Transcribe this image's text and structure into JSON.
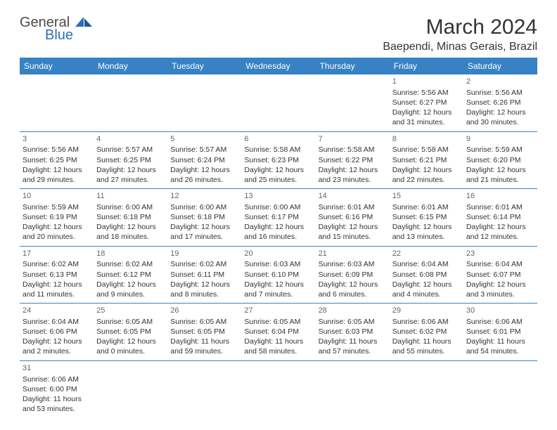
{
  "logo": {
    "text1": "General",
    "text2": "Blue",
    "shape_color": "#2a6fb5"
  },
  "title": "March 2024",
  "location": "Baependi, Minas Gerais, Brazil",
  "header_bg": "#3682c4",
  "header_text_color": "#ffffff",
  "border_color": "#3682c4",
  "day_headers": [
    "Sunday",
    "Monday",
    "Tuesday",
    "Wednesday",
    "Thursday",
    "Friday",
    "Saturday"
  ],
  "weeks": [
    [
      null,
      null,
      null,
      null,
      null,
      {
        "n": "1",
        "sr": "Sunrise: 5:56 AM",
        "ss": "Sunset: 6:27 PM",
        "d1": "Daylight: 12 hours",
        "d2": "and 31 minutes."
      },
      {
        "n": "2",
        "sr": "Sunrise: 5:56 AM",
        "ss": "Sunset: 6:26 PM",
        "d1": "Daylight: 12 hours",
        "d2": "and 30 minutes."
      }
    ],
    [
      {
        "n": "3",
        "sr": "Sunrise: 5:56 AM",
        "ss": "Sunset: 6:25 PM",
        "d1": "Daylight: 12 hours",
        "d2": "and 29 minutes."
      },
      {
        "n": "4",
        "sr": "Sunrise: 5:57 AM",
        "ss": "Sunset: 6:25 PM",
        "d1": "Daylight: 12 hours",
        "d2": "and 27 minutes."
      },
      {
        "n": "5",
        "sr": "Sunrise: 5:57 AM",
        "ss": "Sunset: 6:24 PM",
        "d1": "Daylight: 12 hours",
        "d2": "and 26 minutes."
      },
      {
        "n": "6",
        "sr": "Sunrise: 5:58 AM",
        "ss": "Sunset: 6:23 PM",
        "d1": "Daylight: 12 hours",
        "d2": "and 25 minutes."
      },
      {
        "n": "7",
        "sr": "Sunrise: 5:58 AM",
        "ss": "Sunset: 6:22 PM",
        "d1": "Daylight: 12 hours",
        "d2": "and 23 minutes."
      },
      {
        "n": "8",
        "sr": "Sunrise: 5:58 AM",
        "ss": "Sunset: 6:21 PM",
        "d1": "Daylight: 12 hours",
        "d2": "and 22 minutes."
      },
      {
        "n": "9",
        "sr": "Sunrise: 5:59 AM",
        "ss": "Sunset: 6:20 PM",
        "d1": "Daylight: 12 hours",
        "d2": "and 21 minutes."
      }
    ],
    [
      {
        "n": "10",
        "sr": "Sunrise: 5:59 AM",
        "ss": "Sunset: 6:19 PM",
        "d1": "Daylight: 12 hours",
        "d2": "and 20 minutes."
      },
      {
        "n": "11",
        "sr": "Sunrise: 6:00 AM",
        "ss": "Sunset: 6:18 PM",
        "d1": "Daylight: 12 hours",
        "d2": "and 18 minutes."
      },
      {
        "n": "12",
        "sr": "Sunrise: 6:00 AM",
        "ss": "Sunset: 6:18 PM",
        "d1": "Daylight: 12 hours",
        "d2": "and 17 minutes."
      },
      {
        "n": "13",
        "sr": "Sunrise: 6:00 AM",
        "ss": "Sunset: 6:17 PM",
        "d1": "Daylight: 12 hours",
        "d2": "and 16 minutes."
      },
      {
        "n": "14",
        "sr": "Sunrise: 6:01 AM",
        "ss": "Sunset: 6:16 PM",
        "d1": "Daylight: 12 hours",
        "d2": "and 15 minutes."
      },
      {
        "n": "15",
        "sr": "Sunrise: 6:01 AM",
        "ss": "Sunset: 6:15 PM",
        "d1": "Daylight: 12 hours",
        "d2": "and 13 minutes."
      },
      {
        "n": "16",
        "sr": "Sunrise: 6:01 AM",
        "ss": "Sunset: 6:14 PM",
        "d1": "Daylight: 12 hours",
        "d2": "and 12 minutes."
      }
    ],
    [
      {
        "n": "17",
        "sr": "Sunrise: 6:02 AM",
        "ss": "Sunset: 6:13 PM",
        "d1": "Daylight: 12 hours",
        "d2": "and 11 minutes."
      },
      {
        "n": "18",
        "sr": "Sunrise: 6:02 AM",
        "ss": "Sunset: 6:12 PM",
        "d1": "Daylight: 12 hours",
        "d2": "and 9 minutes."
      },
      {
        "n": "19",
        "sr": "Sunrise: 6:02 AM",
        "ss": "Sunset: 6:11 PM",
        "d1": "Daylight: 12 hours",
        "d2": "and 8 minutes."
      },
      {
        "n": "20",
        "sr": "Sunrise: 6:03 AM",
        "ss": "Sunset: 6:10 PM",
        "d1": "Daylight: 12 hours",
        "d2": "and 7 minutes."
      },
      {
        "n": "21",
        "sr": "Sunrise: 6:03 AM",
        "ss": "Sunset: 6:09 PM",
        "d1": "Daylight: 12 hours",
        "d2": "and 6 minutes."
      },
      {
        "n": "22",
        "sr": "Sunrise: 6:04 AM",
        "ss": "Sunset: 6:08 PM",
        "d1": "Daylight: 12 hours",
        "d2": "and 4 minutes."
      },
      {
        "n": "23",
        "sr": "Sunrise: 6:04 AM",
        "ss": "Sunset: 6:07 PM",
        "d1": "Daylight: 12 hours",
        "d2": "and 3 minutes."
      }
    ],
    [
      {
        "n": "24",
        "sr": "Sunrise: 6:04 AM",
        "ss": "Sunset: 6:06 PM",
        "d1": "Daylight: 12 hours",
        "d2": "and 2 minutes."
      },
      {
        "n": "25",
        "sr": "Sunrise: 6:05 AM",
        "ss": "Sunset: 6:05 PM",
        "d1": "Daylight: 12 hours",
        "d2": "and 0 minutes."
      },
      {
        "n": "26",
        "sr": "Sunrise: 6:05 AM",
        "ss": "Sunset: 6:05 PM",
        "d1": "Daylight: 11 hours",
        "d2": "and 59 minutes."
      },
      {
        "n": "27",
        "sr": "Sunrise: 6:05 AM",
        "ss": "Sunset: 6:04 PM",
        "d1": "Daylight: 11 hours",
        "d2": "and 58 minutes."
      },
      {
        "n": "28",
        "sr": "Sunrise: 6:05 AM",
        "ss": "Sunset: 6:03 PM",
        "d1": "Daylight: 11 hours",
        "d2": "and 57 minutes."
      },
      {
        "n": "29",
        "sr": "Sunrise: 6:06 AM",
        "ss": "Sunset: 6:02 PM",
        "d1": "Daylight: 11 hours",
        "d2": "and 55 minutes."
      },
      {
        "n": "30",
        "sr": "Sunrise: 6:06 AM",
        "ss": "Sunset: 6:01 PM",
        "d1": "Daylight: 11 hours",
        "d2": "and 54 minutes."
      }
    ],
    [
      {
        "n": "31",
        "sr": "Sunrise: 6:06 AM",
        "ss": "Sunset: 6:00 PM",
        "d1": "Daylight: 11 hours",
        "d2": "and 53 minutes."
      },
      null,
      null,
      null,
      null,
      null,
      null
    ]
  ]
}
